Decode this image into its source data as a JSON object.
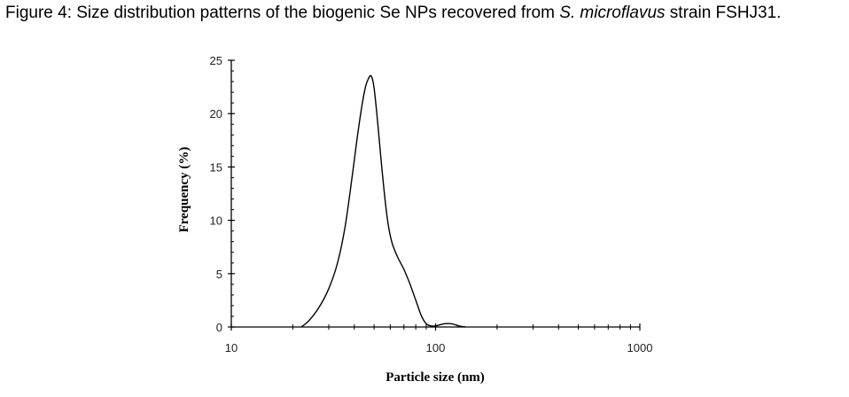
{
  "caption": {
    "prefix": "Figure 4: Size distribution patterns of the biogenic Se NPs recovered from ",
    "species": "S. microflavus",
    "suffix": " strain FSHJ31."
  },
  "chart_data": {
    "type": "line",
    "x_scale": "log",
    "xlim": [
      10,
      1000
    ],
    "ylim": [
      0,
      25
    ],
    "xlabel": "Particle size (nm)",
    "ylabel": "Frequency (%)",
    "x_ticks": [
      10,
      100,
      1000
    ],
    "y_ticks": [
      0,
      5,
      10,
      15,
      20,
      25
    ],
    "grid": false,
    "series": [
      {
        "x": [
          22,
          24,
          27,
          30,
          33,
          36,
          39,
          42,
          45,
          47,
          48.5,
          50,
          52,
          55,
          58,
          61,
          65,
          70,
          75,
          80,
          85,
          90,
          95,
          100,
          110,
          120,
          130,
          140
        ],
        "y": [
          0,
          0.6,
          1.9,
          3.6,
          5.9,
          9.3,
          14.0,
          18.7,
          22.2,
          23.3,
          23.5,
          22.4,
          19.3,
          14.2,
          10.2,
          8.0,
          6.6,
          5.4,
          4.0,
          2.5,
          1.1,
          0.3,
          0.1,
          0.1,
          0.3,
          0.3,
          0.1,
          0
        ]
      }
    ]
  }
}
